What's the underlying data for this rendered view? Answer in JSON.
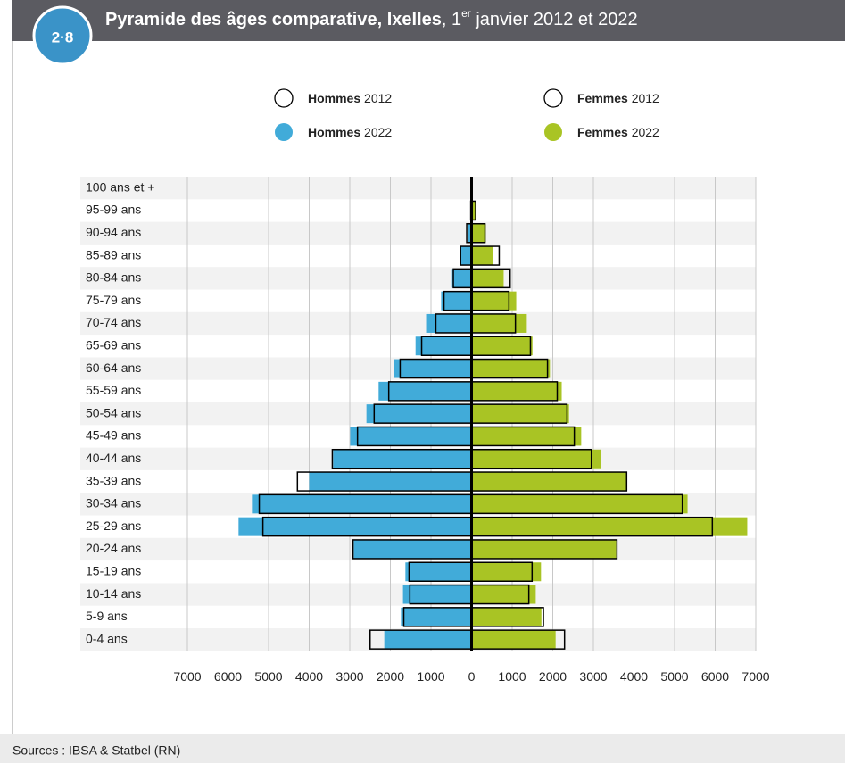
{
  "badge": "2·8",
  "chart_data": {
    "type": "pyramid",
    "title": {
      "main": "Pyramide des âges comparative, Ixelles",
      "rest1": ", 1",
      "sup": "er",
      "rest2": " janvier 2012 et 2022"
    },
    "categories": [
      "100 ans et +",
      "95-99 ans",
      "90-94 ans",
      "85-89 ans",
      "80-84 ans",
      "75-79 ans",
      "70-74 ans",
      "65-69 ans",
      "60-64 ans",
      "55-59 ans",
      "50-54 ans",
      "45-49 ans",
      "40-44 ans",
      "35-39 ans",
      "30-34 ans",
      "25-29 ans",
      "20-24 ans",
      "15-19 ans",
      "10-14 ans",
      "5-9 ans",
      "0-4 ans"
    ],
    "series": [
      {
        "name": "Hommes 2022",
        "color": "#41abd9",
        "side": "left",
        "style": "fill",
        "values": [
          10,
          30,
          100,
          280,
          480,
          750,
          1120,
          1380,
          1910,
          2290,
          2590,
          2990,
          3410,
          4000,
          5410,
          5740,
          2900,
          1630,
          1690,
          1740,
          2150
        ]
      },
      {
        "name": "Femmes 2022",
        "color": "#a9c424",
        "side": "right",
        "style": "fill",
        "values": [
          10,
          120,
          350,
          520,
          790,
          1100,
          1360,
          1500,
          1930,
          2220,
          2400,
          2700,
          3190,
          3820,
          5320,
          6790,
          3560,
          1710,
          1580,
          1720,
          2070
        ]
      },
      {
        "name": "Hommes 2012",
        "color": "#000000",
        "side": "left",
        "style": "outline",
        "values": [
          10,
          20,
          120,
          270,
          450,
          680,
          880,
          1230,
          1760,
          2040,
          2400,
          2810,
          3430,
          4290,
          5230,
          5140,
          2920,
          1540,
          1520,
          1670,
          2500
        ]
      },
      {
        "name": "Femmes 2012",
        "color": "#000000",
        "side": "right",
        "style": "outline",
        "values": [
          10,
          100,
          330,
          680,
          950,
          920,
          1080,
          1450,
          1870,
          2110,
          2350,
          2530,
          2950,
          3820,
          5190,
          5930,
          3580,
          1490,
          1410,
          1770,
          2290
        ]
      }
    ],
    "xlim": [
      -7000,
      7000
    ],
    "xticks": [
      {
        "value": -7000,
        "label": "7000"
      },
      {
        "value": -6000,
        "label": "6000"
      },
      {
        "value": -5000,
        "label": "5000"
      },
      {
        "value": -4000,
        "label": "4000"
      },
      {
        "value": -3000,
        "label": "3000"
      },
      {
        "value": -2000,
        "label": "2000"
      },
      {
        "value": -1000,
        "label": "1000"
      },
      0,
      1000,
      2000,
      3000,
      4000,
      5000,
      6000,
      7000
    ],
    "grid": true
  },
  "source": "Sources : IBSA & Statbel (RN)"
}
